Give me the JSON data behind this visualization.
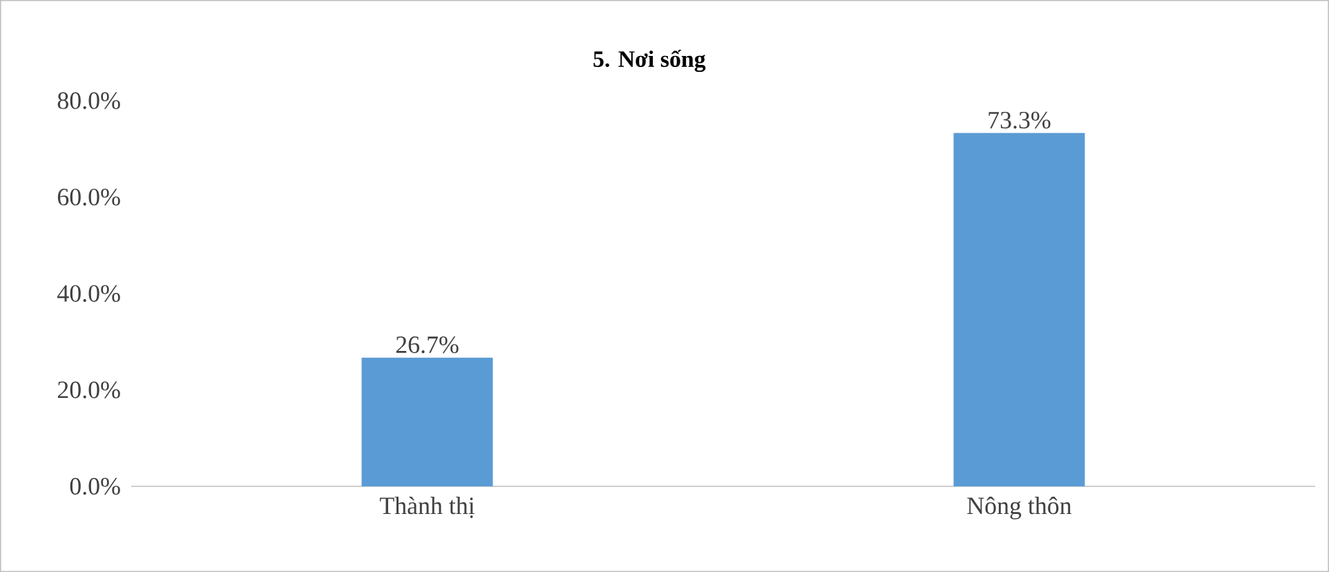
{
  "chart_data": {
    "type": "bar",
    "title": "5. Nơi sống",
    "categories": [
      "Thành thị",
      "Nông thôn"
    ],
    "values": [
      26.7,
      73.3
    ],
    "value_labels": [
      "26.7%",
      "73.3%"
    ],
    "color": "#5b9bd5",
    "ylim": [
      0,
      80
    ],
    "yticks": [
      {
        "value": 0,
        "label": "0.0%"
      },
      {
        "value": 20,
        "label": "20.0%"
      },
      {
        "value": 40,
        "label": "40.0%"
      },
      {
        "value": 60,
        "label": "60.0%"
      },
      {
        "value": 80,
        "label": "80.0%"
      }
    ],
    "grid": false
  }
}
